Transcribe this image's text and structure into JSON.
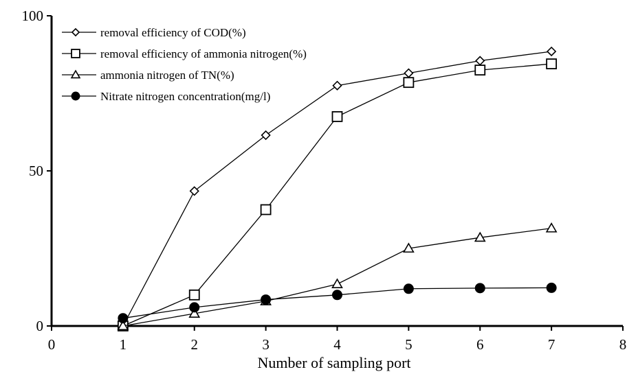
{
  "chart_data": {
    "type": "line",
    "title": "",
    "xlabel": "Number of sampling port",
    "ylabel": "",
    "xlim": [
      0,
      8
    ],
    "ylim": [
      0,
      100
    ],
    "x_ticks": [
      "0",
      "1",
      "2",
      "3",
      "4",
      "5",
      "6",
      "7",
      "8"
    ],
    "y_ticks": [
      "0",
      "50",
      "100"
    ],
    "grid": false,
    "legend_position": "top-left",
    "x": [
      1,
      2,
      3,
      4,
      5,
      6,
      7
    ],
    "series": [
      {
        "name": "removal efficiency of COD(%)",
        "marker": "diamond-open",
        "values": [
          0,
          43.5,
          61.5,
          77.5,
          81.5,
          85.5,
          88.5
        ]
      },
      {
        "name": "removal efficiency of ammonia nitrogen(%)",
        "marker": "square-open",
        "values": [
          0,
          10,
          37.5,
          67.5,
          78.5,
          82.5,
          84.5
        ]
      },
      {
        "name": "ammonia nitrogen of TN(%)",
        "marker": "triangle-open",
        "values": [
          0,
          4,
          8,
          13.5,
          25,
          28.5,
          31.5
        ]
      },
      {
        "name": "Nitrate nitrogen concentration(mg/l)",
        "marker": "circle-filled",
        "values": [
          2.5,
          6,
          8.5,
          10,
          12,
          12.2,
          12.3
        ]
      }
    ]
  }
}
